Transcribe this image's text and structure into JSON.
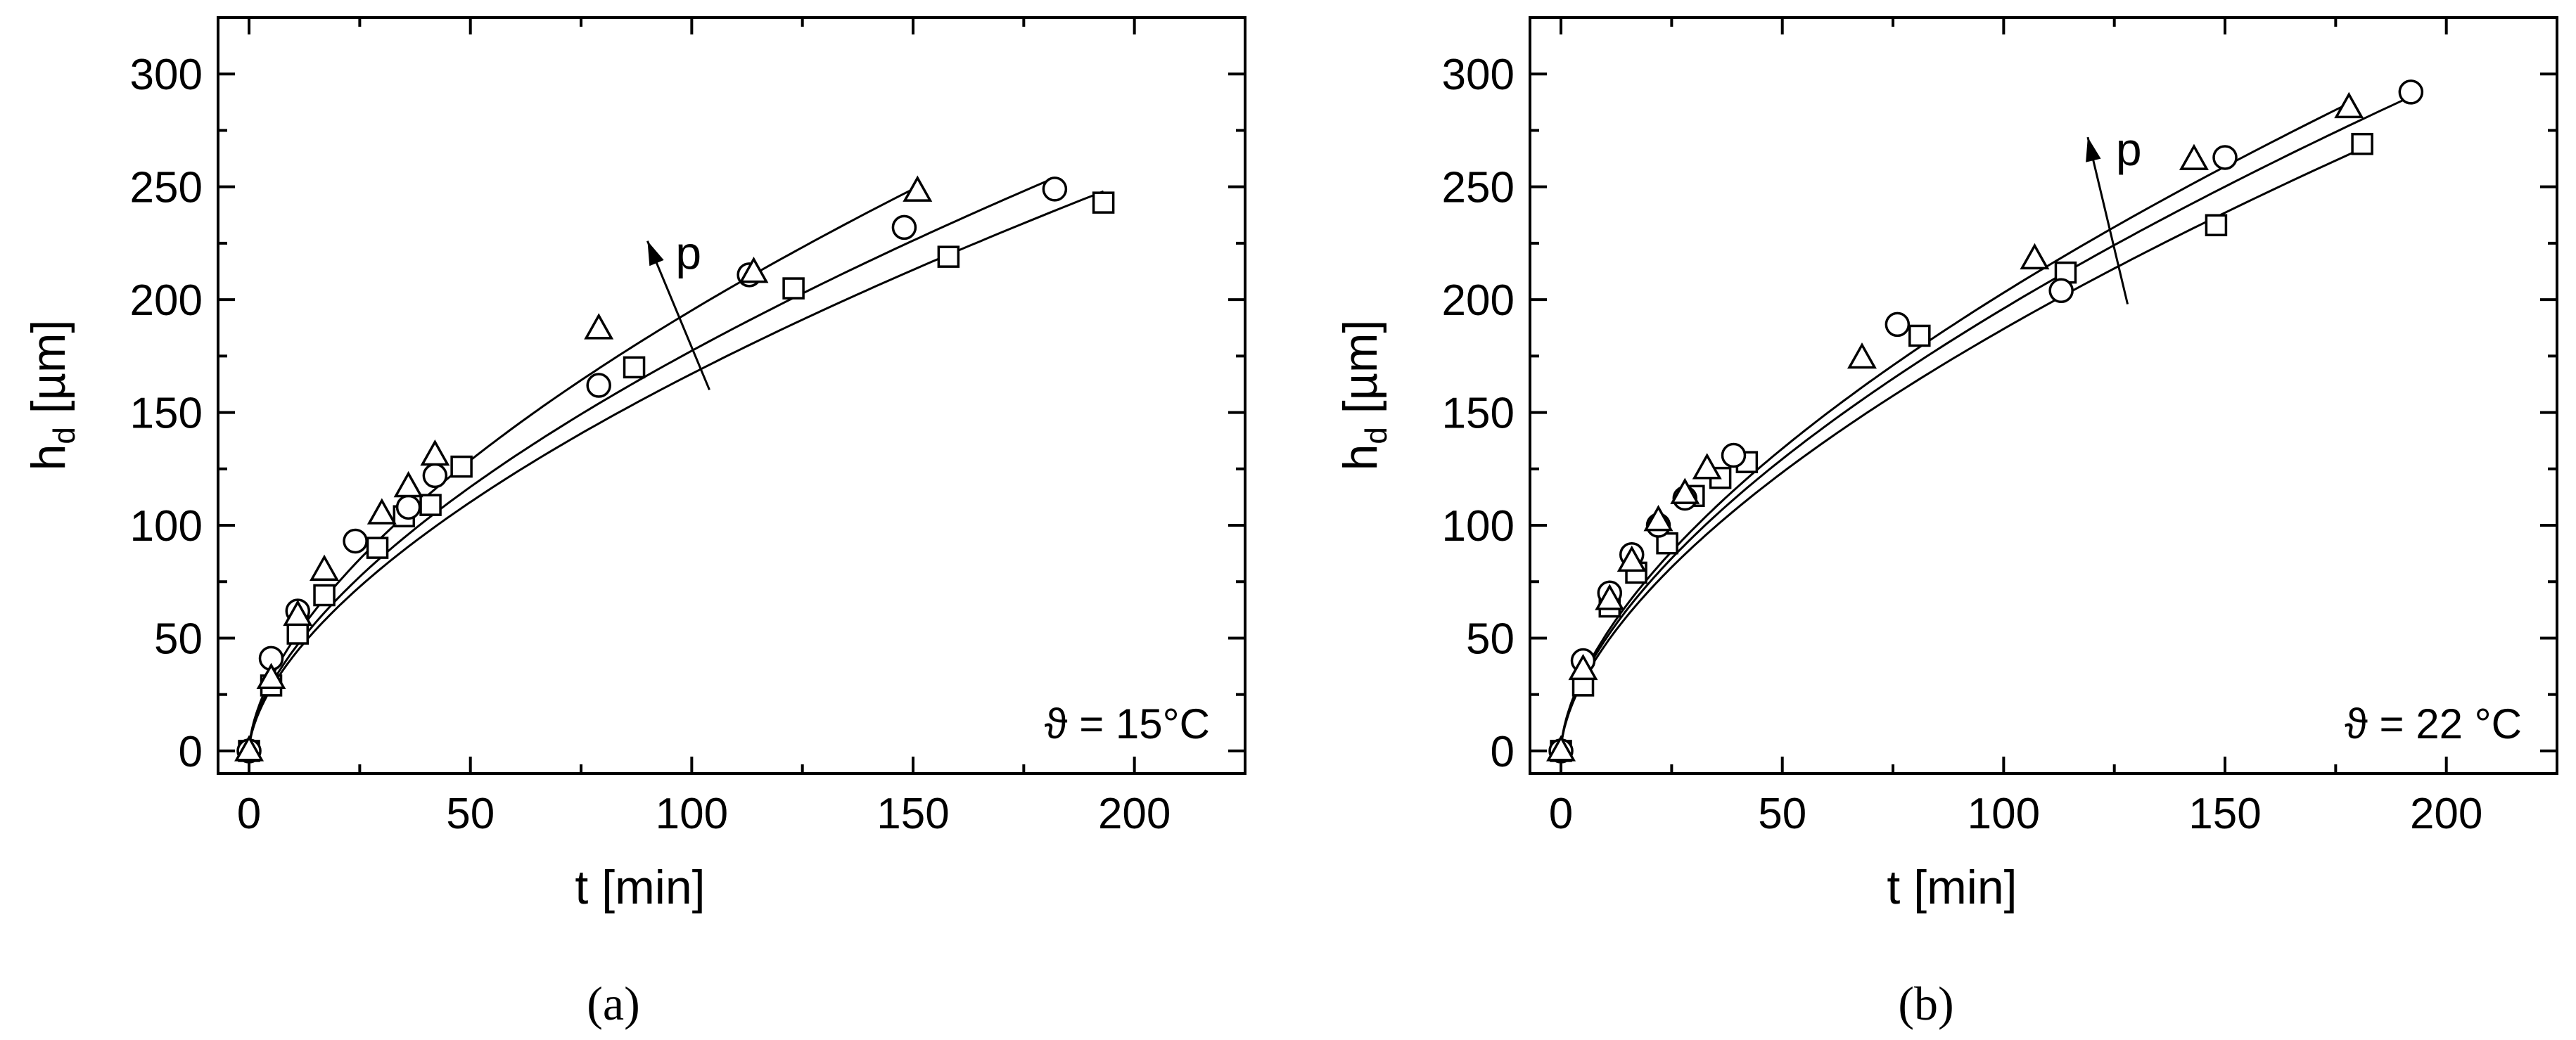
{
  "chart_data": [
    {
      "type": "scatter",
      "panel_label": "(a)",
      "annotation": "ϑ = 15°C",
      "arrow_label": "p",
      "xlabel": "t [min]",
      "ylabel": "h",
      "ylabel_sub": "d",
      "ylabel_unit": " [µm]",
      "xlim": [
        -7,
        225
      ],
      "ylim": [
        -10,
        325
      ],
      "xticks": [
        0,
        50,
        100,
        150,
        200
      ],
      "yticks": [
        0,
        50,
        100,
        150,
        200,
        250,
        300
      ],
      "series": [
        {
          "marker": "square",
          "x": [
            0,
            5,
            11,
            17,
            29,
            35,
            41,
            48,
            87,
            123,
            158,
            193
          ],
          "y": [
            0,
            29,
            52,
            69,
            90,
            104,
            109,
            126,
            170,
            205,
            219,
            243
          ],
          "fit": {
            "x_end": 193,
            "y_end": 248
          }
        },
        {
          "marker": "circle",
          "x": [
            0,
            5,
            11,
            24,
            36,
            42,
            79,
            113,
            148,
            182
          ],
          "y": [
            0,
            41,
            62,
            93,
            108,
            122,
            162,
            211,
            232,
            249
          ],
          "fit": {
            "x_end": 182,
            "y_end": 254
          }
        },
        {
          "marker": "triangle",
          "x": [
            0,
            5,
            11,
            17,
            30,
            36,
            42,
            79,
            114,
            151
          ],
          "y": [
            0,
            32,
            60,
            80,
            105,
            117,
            131,
            187,
            212,
            248
          ],
          "fit": {
            "x_end": 151,
            "y_end": 250
          }
        }
      ],
      "p_arrow": {
        "x1": 104,
        "y1": 160,
        "x2": 90,
        "y2": 226
      }
    },
    {
      "type": "scatter",
      "panel_label": "(b)",
      "annotation": "ϑ = 22 °C",
      "arrow_label": "p",
      "xlabel": "t [min]",
      "ylabel": "h",
      "ylabel_sub": "d",
      "ylabel_unit": " [µm]",
      "xlim": [
        -7,
        225
      ],
      "ylim": [
        -10,
        325
      ],
      "xticks": [
        0,
        50,
        100,
        150,
        200
      ],
      "yticks": [
        0,
        50,
        100,
        150,
        200,
        250,
        300
      ],
      "series": [
        {
          "marker": "square",
          "x": [
            0,
            5,
            11,
            17,
            24,
            30,
            36,
            42,
            81,
            114,
            148,
            181
          ],
          "y": [
            0,
            29,
            64,
            79,
            92,
            113,
            121,
            128,
            184,
            212,
            233,
            269
          ],
          "fit": {
            "x_end": 181,
            "y_end": 267
          }
        },
        {
          "marker": "circle",
          "x": [
            0,
            5,
            11,
            16,
            22,
            28,
            39,
            76,
            113,
            150,
            192
          ],
          "y": [
            0,
            40,
            70,
            87,
            100,
            112,
            131,
            189,
            204,
            263,
            292
          ],
          "fit": {
            "x_end": 192,
            "y_end": 290
          }
        },
        {
          "marker": "triangle",
          "x": [
            0,
            5,
            11,
            16,
            22,
            28,
            33,
            68,
            107,
            143,
            178
          ],
          "y": [
            0,
            36,
            67,
            84,
            102,
            114,
            125,
            174,
            218,
            262,
            285
          ],
          "fit": {
            "x_end": 178,
            "y_end": 287
          }
        }
      ],
      "p_arrow": {
        "x1": 128,
        "y1": 198,
        "x2": 119,
        "y2": 272
      }
    }
  ]
}
